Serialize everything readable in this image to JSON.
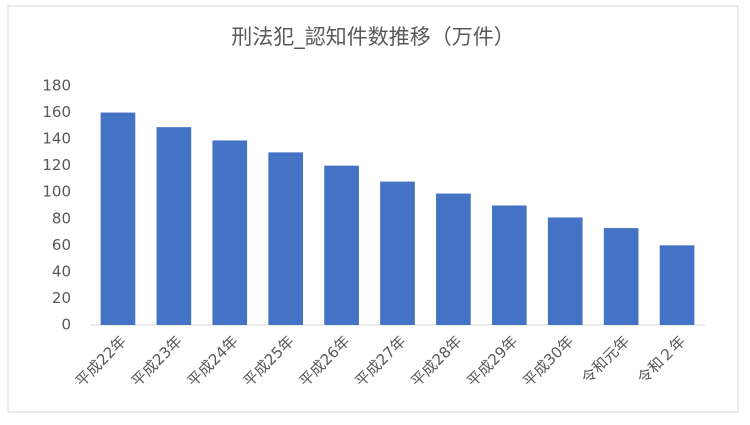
{
  "chart_data": {
    "type": "bar",
    "title": "刑法犯_認知件数推移（万件）",
    "categories": [
      "平成22年",
      "平成23年",
      "平成24年",
      "平成25年",
      "平成26年",
      "平成27年",
      "平成28年",
      "平成29年",
      "平成30年",
      "令和元年",
      "令和２年"
    ],
    "values": [
      160,
      149,
      139,
      130,
      120,
      108,
      99,
      90,
      81,
      73,
      60
    ],
    "color": "#4472c4",
    "ylim": [
      0,
      180
    ],
    "yticks": [
      0,
      20,
      40,
      60,
      80,
      100,
      120,
      140,
      160,
      180
    ],
    "grid": false
  }
}
